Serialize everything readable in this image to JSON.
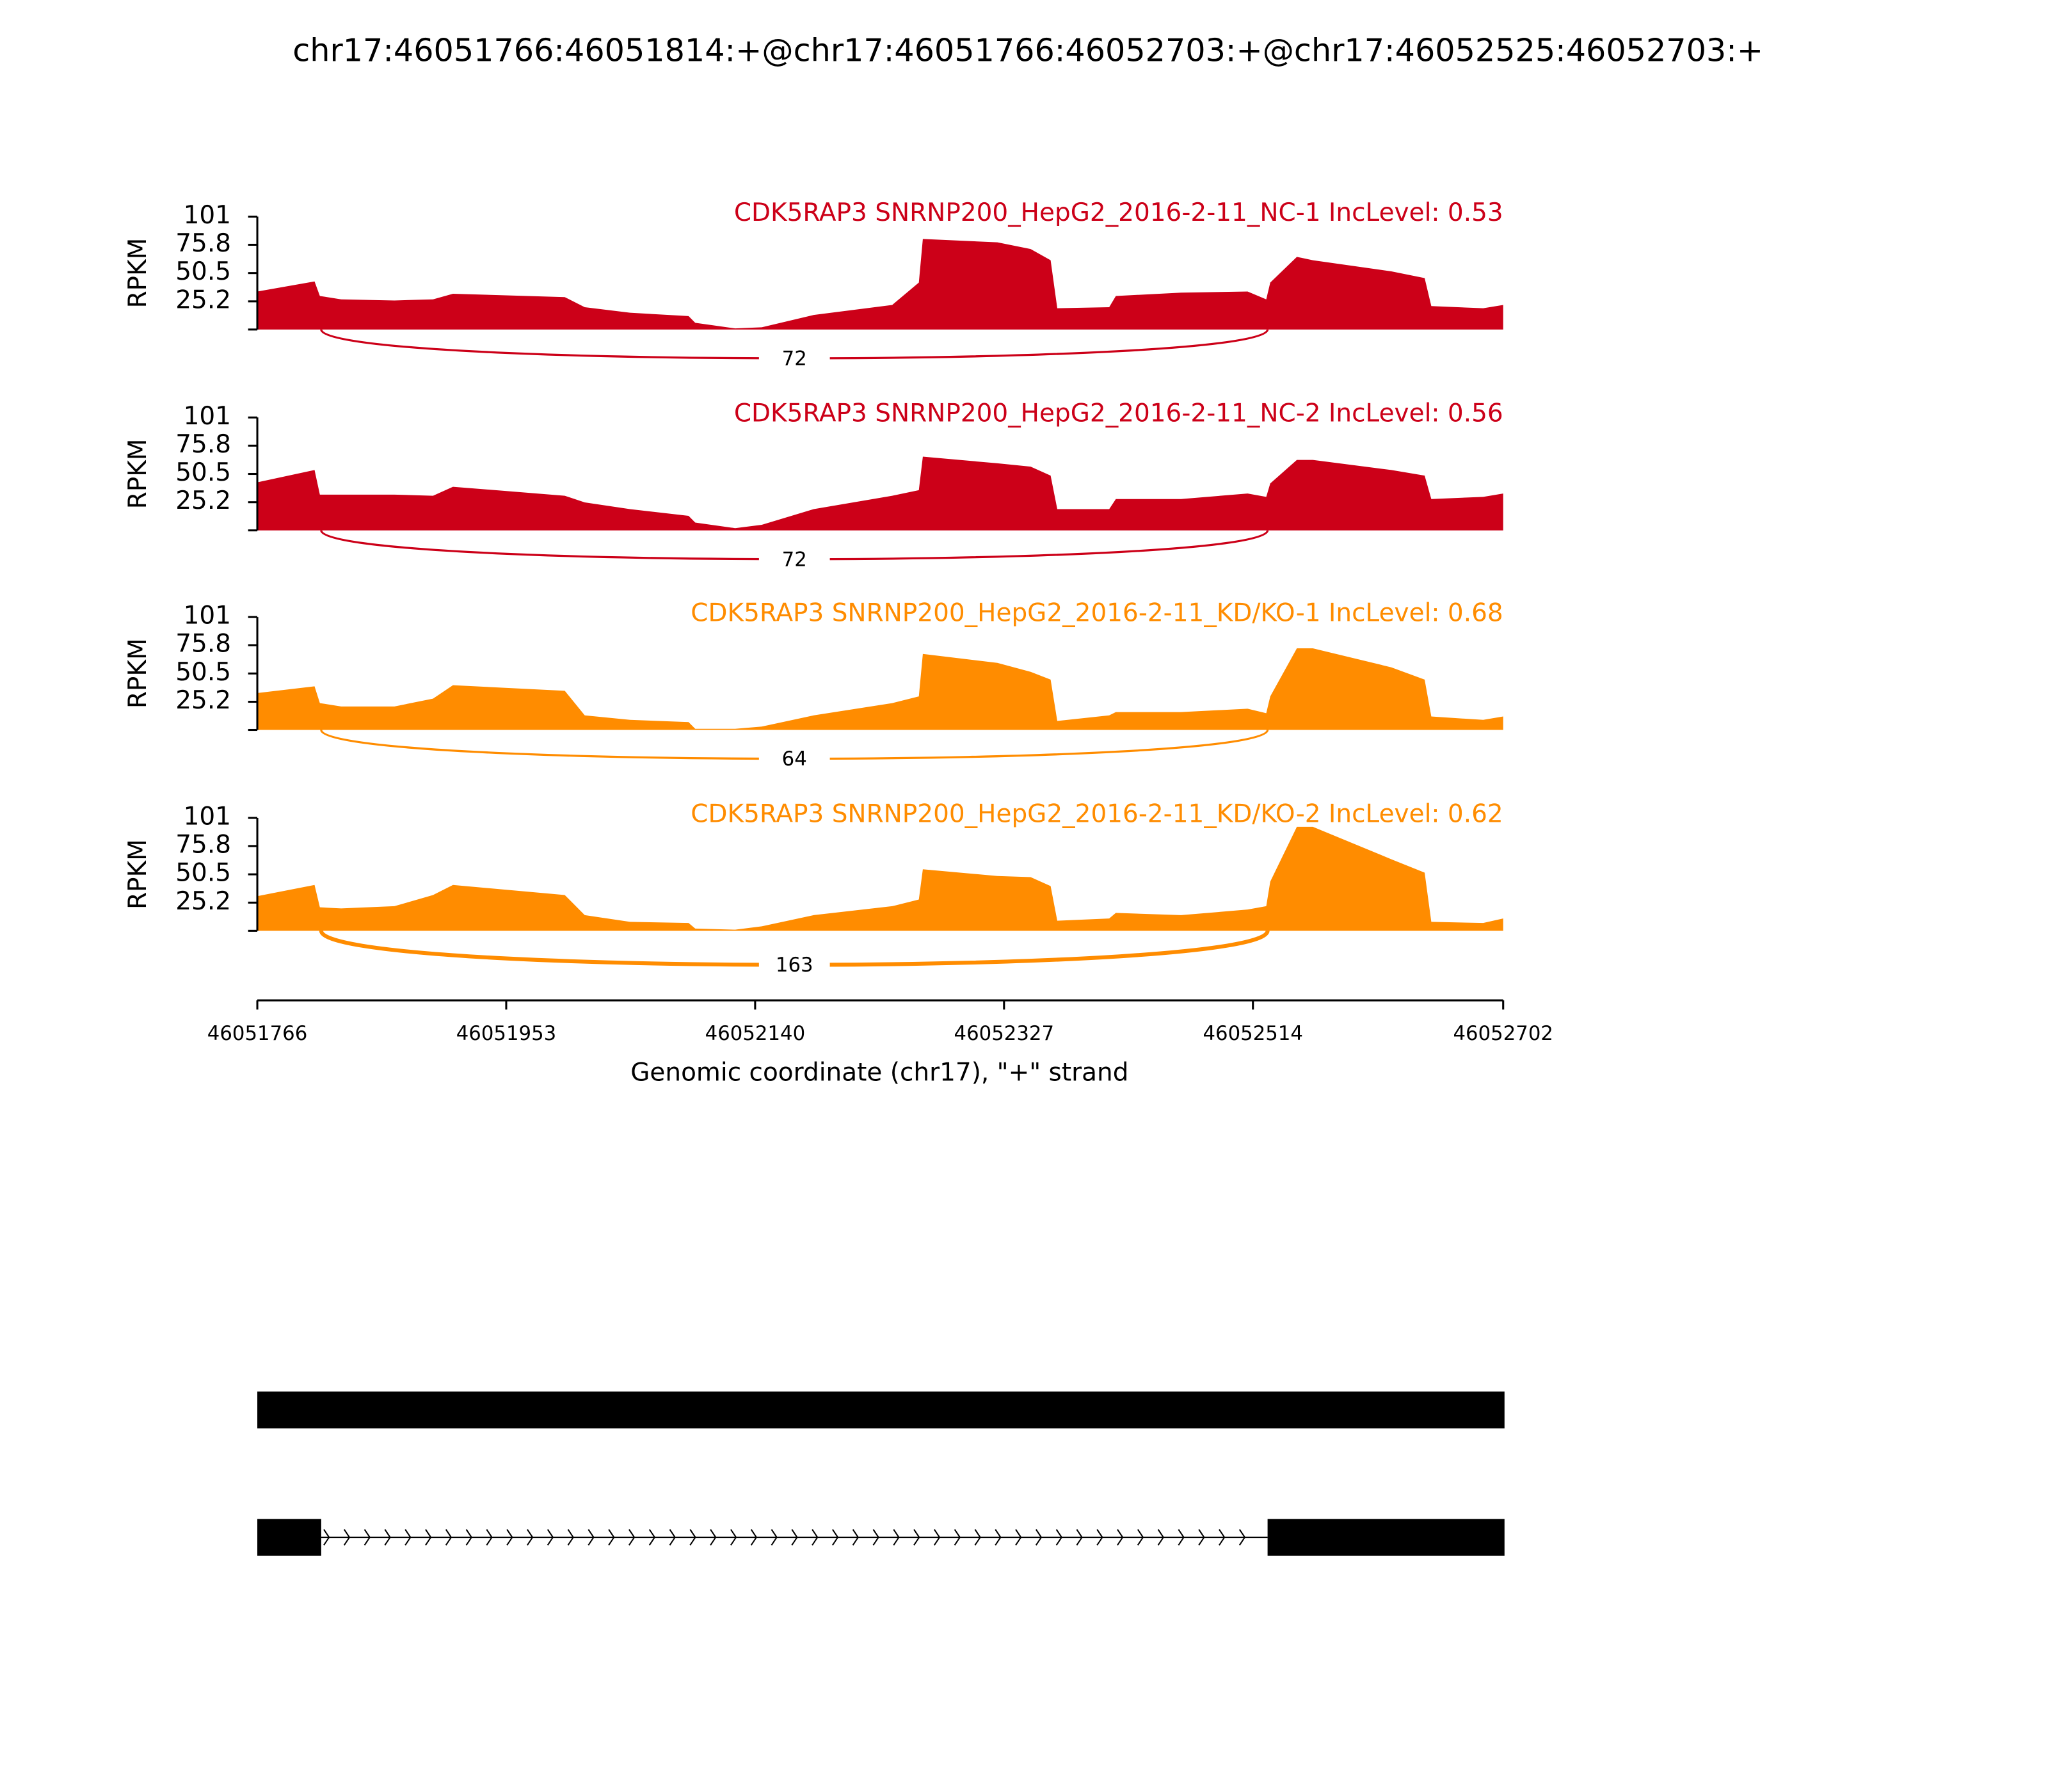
{
  "title": "chr17:46051766:46051814:+@chr17:46051766:46052703:+@chr17:46052525:46052703:+",
  "x_axis": {
    "label": "Genomic coordinate (chr17), \"+\" strand",
    "xlim": [
      46051766,
      46052702
    ],
    "xticks": [
      46051766,
      46051953,
      46052140,
      46052327,
      46052514,
      46052702
    ]
  },
  "chart_data": [
    {
      "type": "area",
      "title": "CDK5RAP3 SNRNP200_HepG2_2016-2-11_NC-1 IncLevel: 0.53",
      "ylabel": "RPKM",
      "color": "#cc0018",
      "ylim": [
        0,
        101
      ],
      "yticks": [
        25.2,
        50.5,
        75.8,
        101
      ],
      "x": [
        46051766,
        46051809,
        46051813,
        46051829,
        46051869,
        46051898,
        46051913,
        46051997,
        46052012,
        46052046,
        46052090,
        46052095,
        46052125,
        46052145,
        46052184,
        46052243,
        46052263,
        46052266,
        46052322,
        46052347,
        46052362,
        46052367,
        46052406,
        46052411,
        46052460,
        46052510,
        46052524,
        46052527,
        46052547,
        46052559,
        46052618,
        46052643,
        46052648,
        46052687,
        46052702
      ],
      "values": [
        34,
        43,
        30,
        27,
        26,
        27,
        32,
        29,
        20,
        15,
        12,
        6,
        1,
        2,
        13,
        22,
        42,
        81,
        78,
        72,
        62,
        19,
        20,
        30,
        33,
        34,
        27,
        42,
        65,
        62,
        52,
        46,
        21,
        19,
        22
      ],
      "junctions": [
        {
          "start": 46051814,
          "end": 46052525,
          "count": 72
        }
      ]
    },
    {
      "type": "area",
      "title": "CDK5RAP3 SNRNP200_HepG2_2016-2-11_NC-2 IncLevel: 0.56",
      "ylabel": "RPKM",
      "color": "#cc0018",
      "ylim": [
        0,
        101
      ],
      "yticks": [
        25.2,
        50.5,
        75.8,
        101
      ],
      "x": [
        46051766,
        46051809,
        46051813,
        46051829,
        46051869,
        46051898,
        46051913,
        46051997,
        46052012,
        46052046,
        46052090,
        46052095,
        46052125,
        46052145,
        46052184,
        46052243,
        46052263,
        46052266,
        46052322,
        46052347,
        46052362,
        46052367,
        46052406,
        46052411,
        46052460,
        46052510,
        46052524,
        46052527,
        46052547,
        46052559,
        46052618,
        46052643,
        46052648,
        46052687,
        46052702
      ],
      "values": [
        43,
        54,
        32,
        32,
        32,
        31,
        39,
        31,
        25,
        19,
        13,
        7,
        2,
        5,
        19,
        31,
        36,
        66,
        60,
        57,
        49,
        19,
        19,
        28,
        28,
        33,
        30,
        42,
        63,
        63,
        54,
        49,
        28,
        30,
        33
      ],
      "junctions": [
        {
          "start": 46051814,
          "end": 46052525,
          "count": 72
        }
      ]
    },
    {
      "type": "area",
      "title": "CDK5RAP3 SNRNP200_HepG2_2016-2-11_KD/KO-1 IncLevel: 0.68",
      "ylabel": "RPKM",
      "color": "#ff8c00",
      "ylim": [
        0,
        101
      ],
      "yticks": [
        25.2,
        50.5,
        75.8,
        101
      ],
      "x": [
        46051766,
        46051809,
        46051813,
        46051829,
        46051869,
        46051898,
        46051913,
        46051997,
        46052012,
        46052046,
        46052090,
        46052095,
        46052125,
        46052145,
        46052184,
        46052243,
        46052263,
        46052266,
        46052322,
        46052347,
        46052362,
        46052367,
        46052406,
        46052411,
        46052460,
        46052510,
        46052524,
        46052527,
        46052547,
        46052559,
        46052618,
        46052643,
        46052648,
        46052687,
        46052702
      ],
      "values": [
        33,
        39,
        24,
        21,
        21,
        28,
        40,
        35,
        13,
        9,
        7,
        1,
        1,
        3,
        13,
        24,
        30,
        68,
        60,
        52,
        45,
        8,
        13,
        16,
        16,
        19,
        15,
        30,
        73,
        73,
        56,
        45,
        12,
        9,
        12
      ],
      "junctions": [
        {
          "start": 46051814,
          "end": 46052525,
          "count": 64
        }
      ]
    },
    {
      "type": "area",
      "title": "CDK5RAP3 SNRNP200_HepG2_2016-2-11_KD/KO-2 IncLevel: 0.62",
      "ylabel": "RPKM",
      "color": "#ff8c00",
      "ylim": [
        0,
        101
      ],
      "yticks": [
        25.2,
        50.5,
        75.8,
        101
      ],
      "x": [
        46051766,
        46051809,
        46051813,
        46051829,
        46051869,
        46051898,
        46051913,
        46051997,
        46052012,
        46052046,
        46052090,
        46052095,
        46052125,
        46052145,
        46052184,
        46052243,
        46052263,
        46052266,
        46052322,
        46052347,
        46052362,
        46052367,
        46052406,
        46052411,
        46052460,
        46052510,
        46052524,
        46052527,
        46052547,
        46052559,
        46052618,
        46052643,
        46052648,
        46052687,
        46052702
      ],
      "values": [
        31,
        41,
        21,
        20,
        22,
        32,
        41,
        32,
        14,
        8,
        7,
        2,
        1,
        4,
        14,
        22,
        28,
        55,
        49,
        48,
        40,
        9,
        11,
        16,
        14,
        19,
        22,
        44,
        93,
        93,
        64,
        52,
        8,
        7,
        11
      ],
      "junctions": [
        {
          "start": 46051814,
          "end": 46052525,
          "count": 163
        }
      ]
    }
  ],
  "gene_track": {
    "transcripts": [
      {
        "exons": [
          [
            46051766,
            46052703
          ]
        ]
      },
      {
        "exons": [
          [
            46051766,
            46051814
          ],
          [
            46052525,
            46052703
          ]
        ]
      }
    ]
  }
}
